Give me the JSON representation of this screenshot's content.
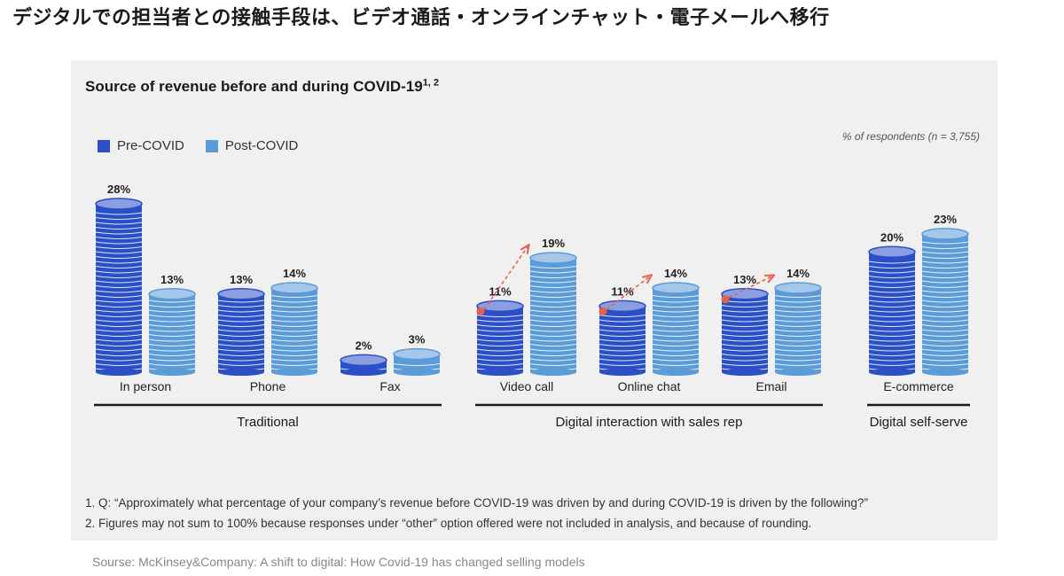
{
  "headline": "デジタルでの担当者との接触手段は、ビデオ通話・オンラインチャット・電子メールへ移行",
  "chart_data": {
    "type": "bar",
    "title": "Source of revenue before and during COVID-19",
    "title_superscript": "1, 2",
    "unit_note": "% of respondents (n = 3,755)",
    "categories": [
      "In person",
      "Phone",
      "Fax",
      "Video call",
      "Online chat",
      "Email",
      "E-commerce"
    ],
    "series": [
      {
        "name": "Pre-COVID",
        "values": [
          28,
          13,
          2,
          11,
          11,
          13,
          20
        ],
        "labels": [
          "28%",
          "13%",
          "2%",
          "11%",
          "11%",
          "13%",
          "20%"
        ],
        "color": "#2b4fc6"
      },
      {
        "name": "Post-COVID",
        "values": [
          13,
          14,
          3,
          19,
          14,
          14,
          23
        ],
        "labels": [
          "13%",
          "14%",
          "3%",
          "19%",
          "14%",
          "14%",
          "23%"
        ],
        "color": "#5b9bd8"
      }
    ],
    "groups": [
      {
        "label": "Traditional",
        "categories": [
          "In person",
          "Phone",
          "Fax"
        ]
      },
      {
        "label": "Digital interaction with sales rep",
        "categories": [
          "Video call",
          "Online chat",
          "Email"
        ]
      },
      {
        "label": "Digital self-serve",
        "categories": [
          "E-commerce"
        ]
      }
    ],
    "trend_arrows": [
      "Video call",
      "Online chat",
      "Email"
    ],
    "arrow_color": "#e8604c",
    "ylim": [
      0,
      28
    ],
    "legend_position": "top-left",
    "grid": false
  },
  "footnotes": [
    "1. Q: “Approximately what percentage of your company’s revenue before COVID-19 was driven by and during COVID-19 is driven by the following?”",
    "2. Figures may not sum to 100% because responses under “other” option offered were not included in analysis, and because of rounding."
  ],
  "source": "Sourse: McKinsey&Company: A shift to digital: How Covid-19 has changed selling models"
}
